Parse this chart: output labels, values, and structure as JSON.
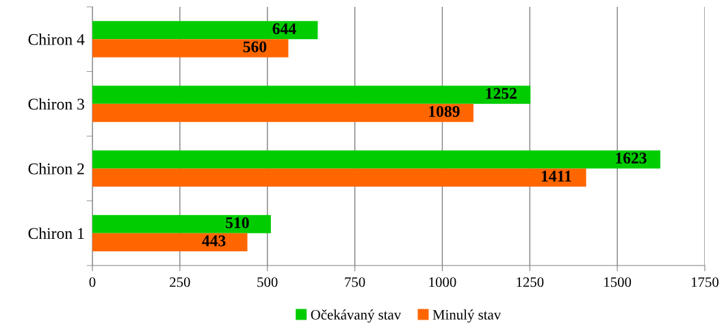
{
  "chart_data": {
    "type": "bar",
    "orientation": "horizontal",
    "categories": [
      "Chiron 4",
      "Chiron 3",
      "Chiron 2",
      "Chiron 1"
    ],
    "series": [
      {
        "name": "Očekávaný stav",
        "color": "#00cc00",
        "values": [
          644,
          1252,
          1623,
          510
        ]
      },
      {
        "name": "Minulý stav",
        "color": "#ff6600",
        "values": [
          560,
          1089,
          1411,
          443
        ]
      }
    ],
    "xlim": [
      0,
      1750
    ],
    "xticks": [
      0,
      250,
      500,
      750,
      1000,
      1250,
      1500,
      1750
    ],
    "grid": "x",
    "legend": "bottom",
    "data_labels": true
  }
}
